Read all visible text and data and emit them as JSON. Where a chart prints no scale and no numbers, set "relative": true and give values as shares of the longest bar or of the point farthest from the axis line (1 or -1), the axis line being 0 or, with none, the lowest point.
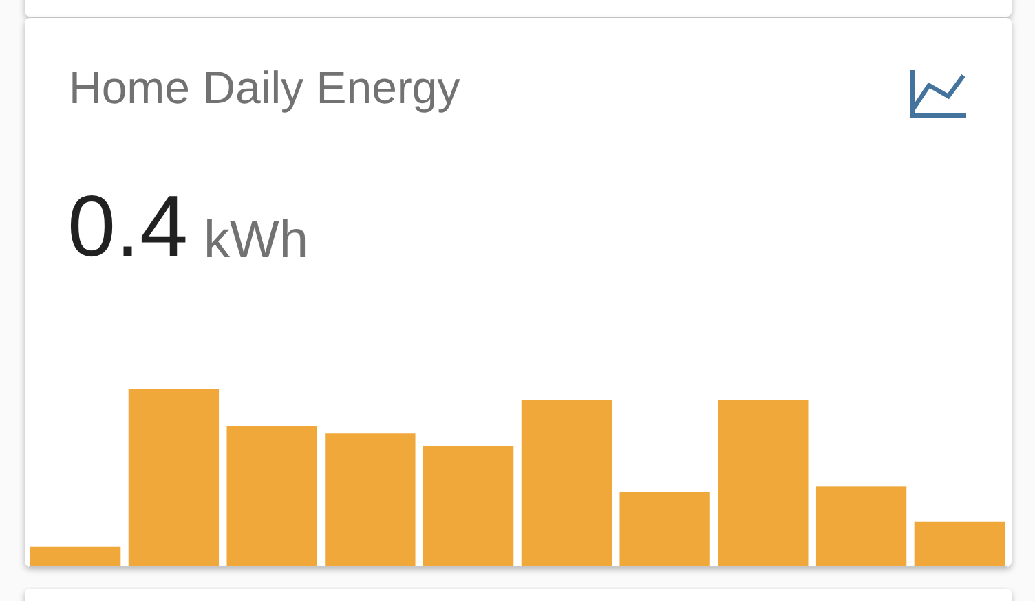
{
  "chart_data": {
    "type": "bar",
    "title": "Home Daily Energy",
    "annotations": [
      "0.4",
      "kWh"
    ],
    "categories": [
      null,
      null,
      null,
      null,
      null,
      null,
      null,
      null,
      null,
      null
    ],
    "values": [
      0.11,
      1,
      0.79,
      0.75,
      0.68,
      0.94,
      0.42,
      0.94,
      0.45,
      0.25
    ],
    "color": "#f0a83a",
    "relative": true
  }
}
